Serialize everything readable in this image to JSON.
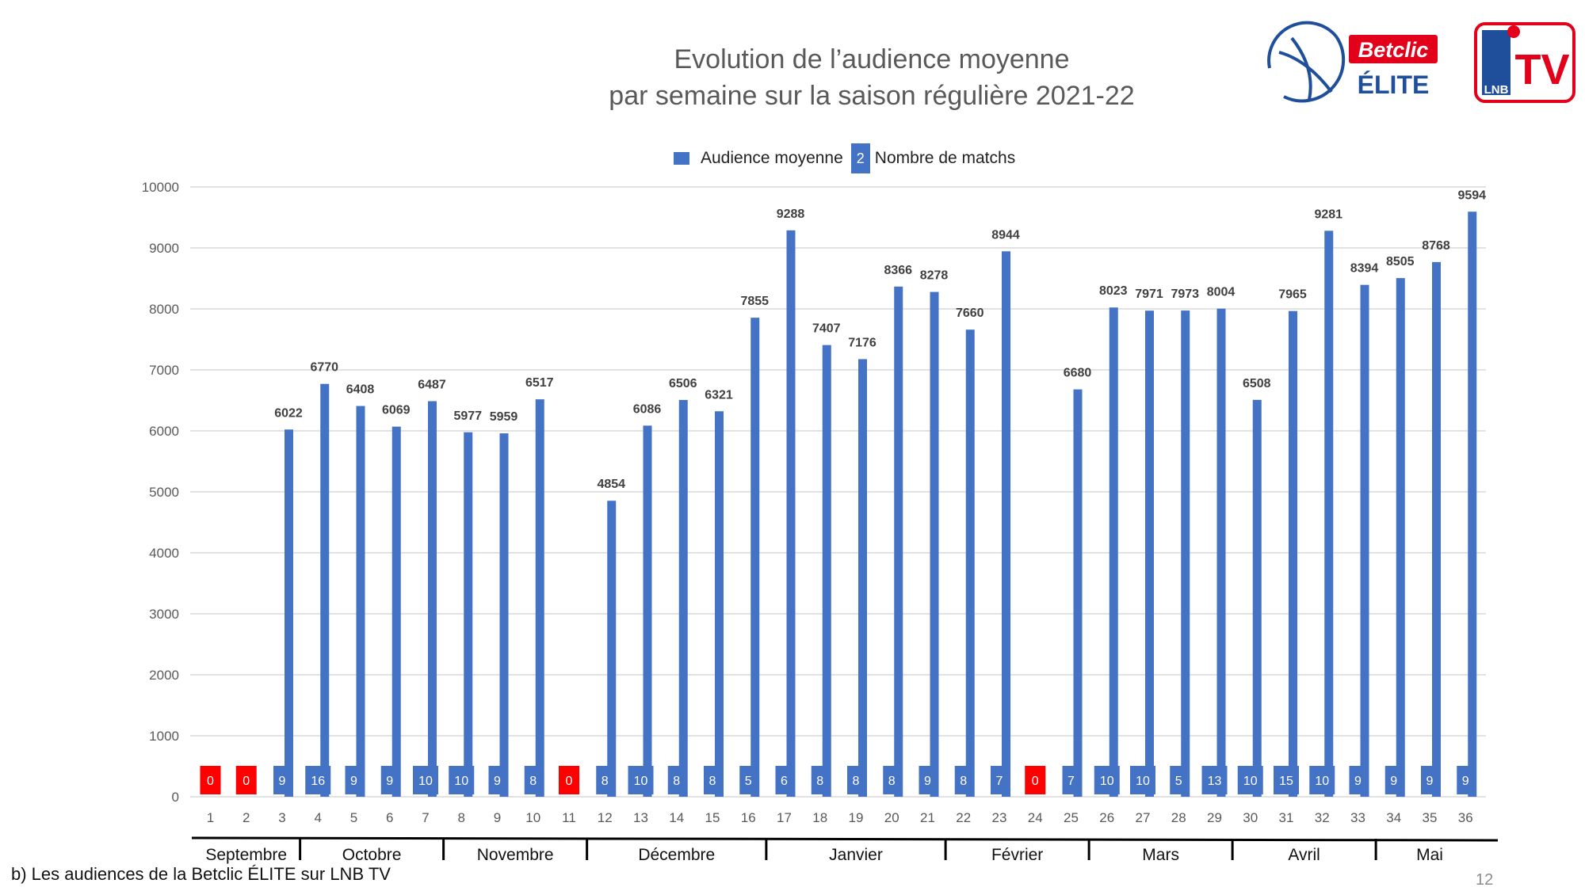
{
  "title_line1": "Evolution de l’audience moyenne",
  "title_line2": "par semaine sur la saison régulière 2021-22",
  "logos": {
    "betclic": "Betclic",
    "elite": "ÉLITE",
    "lnb": "LNB",
    "tv": "TV"
  },
  "legend": {
    "audience_label": "Audience moyenne",
    "matchs_box": "2",
    "matchs_label": "Nombre de matchs"
  },
  "footnote": "b) Les audiences de la Betclic ÉLITE sur LNB TV",
  "page_number": "12",
  "colors": {
    "bar": "#4472C4",
    "zero_box": "#FF0000",
    "grid": "#D9D9D9"
  },
  "chart_data": {
    "type": "bar",
    "title": "Evolution de l’audience moyenne par semaine sur la saison régulière 2021-22",
    "ylim": [
      0,
      10000
    ],
    "yticks": [
      0,
      1000,
      2000,
      3000,
      4000,
      5000,
      6000,
      7000,
      8000,
      9000,
      10000
    ],
    "grid": true,
    "legend_position": "top",
    "categories": [
      "1",
      "2",
      "3",
      "4",
      "5",
      "6",
      "7",
      "8",
      "9",
      "10",
      "11",
      "12",
      "13",
      "14",
      "15",
      "16",
      "17",
      "18",
      "19",
      "20",
      "21",
      "22",
      "23",
      "24",
      "25",
      "26",
      "27",
      "28",
      "29",
      "30",
      "31",
      "32",
      "33",
      "34",
      "35",
      "36"
    ],
    "series": [
      {
        "name": "Audience moyenne",
        "values": [
          0,
          0,
          6022,
          6770,
          6408,
          6069,
          6487,
          5977,
          5959,
          6517,
          0,
          4854,
          6086,
          6506,
          6321,
          7855,
          9288,
          7407,
          7176,
          8366,
          8278,
          7660,
          8944,
          0,
          6680,
          8023,
          7971,
          7973,
          8004,
          6508,
          7965,
          9281,
          8394,
          8505,
          8768,
          9594
        ]
      },
      {
        "name": "Nombre de matchs",
        "values": [
          0,
          0,
          9,
          16,
          9,
          9,
          10,
          10,
          9,
          8,
          0,
          8,
          10,
          8,
          8,
          5,
          6,
          8,
          8,
          8,
          9,
          8,
          7,
          0,
          7,
          10,
          10,
          5,
          13,
          10,
          15,
          10,
          9,
          9,
          9,
          9
        ]
      }
    ],
    "months": [
      {
        "label": "Septembre",
        "from": 1,
        "to": 3
      },
      {
        "label": "Octobre",
        "from": 4,
        "to": 7
      },
      {
        "label": "Novembre",
        "from": 8,
        "to": 11
      },
      {
        "label": "Décembre",
        "from": 12,
        "to": 16
      },
      {
        "label": "Janvier",
        "from": 17,
        "to": 21
      },
      {
        "label": "Février",
        "from": 22,
        "to": 25
      },
      {
        "label": "Mars",
        "from": 26,
        "to": 29
      },
      {
        "label": "Avril",
        "from": 30,
        "to": 33
      },
      {
        "label": "Mai",
        "from": 34,
        "to": 36
      }
    ]
  }
}
